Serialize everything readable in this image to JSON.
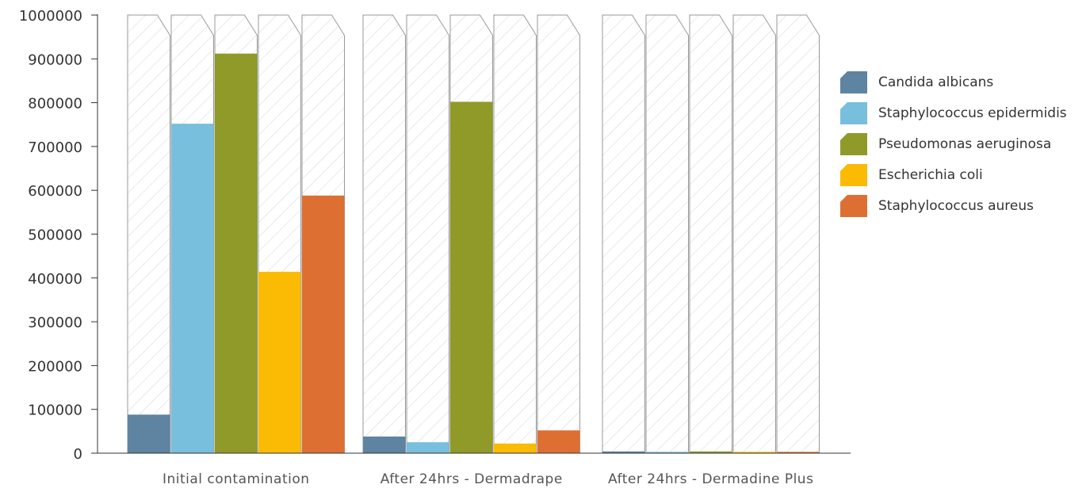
{
  "chart_data": {
    "type": "bar",
    "categories": [
      "Initial contamination",
      "After 24hrs - Dermadrape",
      "After 24hrs - Dermadine Plus"
    ],
    "series": [
      {
        "name": "Candida albicans",
        "color": "#5e84a2",
        "values": [
          88000,
          38000,
          4000
        ]
      },
      {
        "name": "Staphylococcus epidermidis",
        "color": "#77bfdc",
        "values": [
          752000,
          25000,
          3000
        ]
      },
      {
        "name": "Pseudomonas aeruginosa",
        "color": "#8f9a28",
        "values": [
          912000,
          802000,
          4000
        ]
      },
      {
        "name": "Escherichia coli",
        "color": "#fbba04",
        "values": [
          414000,
          22000,
          3000
        ]
      },
      {
        "name": "Staphylococcus aureus",
        "color": "#dd6f33",
        "values": [
          588000,
          52000,
          3000
        ]
      }
    ],
    "y_ticks": [
      "0",
      "100000",
      "200000",
      "300000",
      "400000",
      "500000",
      "600000",
      "700000",
      "800000",
      "900000",
      "1000000"
    ],
    "ylim": [
      0,
      1000000
    ],
    "bar_background": "hatched",
    "legend_position": "right"
  }
}
